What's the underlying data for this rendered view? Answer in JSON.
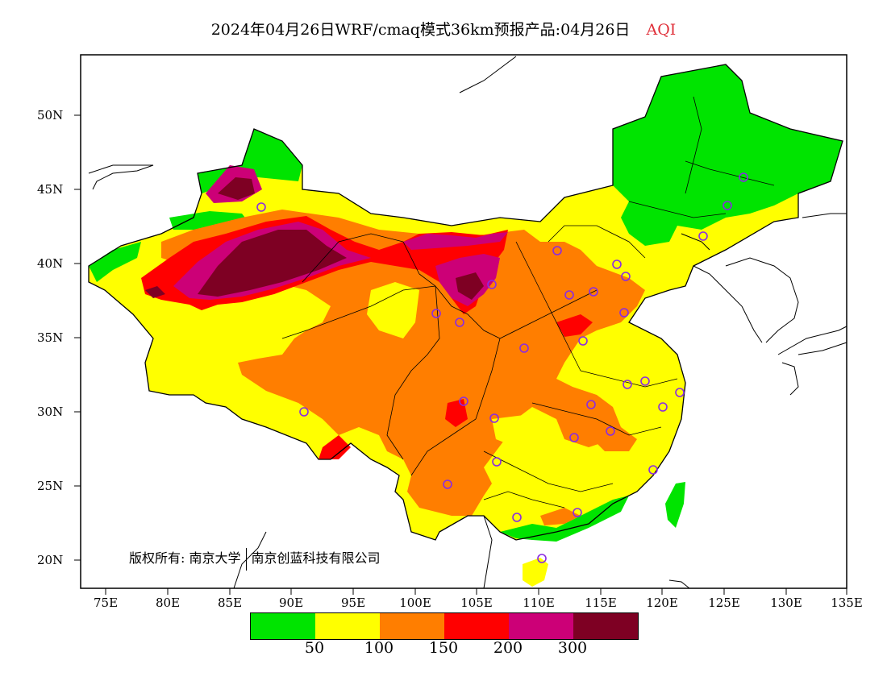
{
  "title": {
    "main": "2024年04月26日WRF/cmaq模式36km预报产品:04月26日",
    "variable": "AQI"
  },
  "copyright": {
    "prefix": "版权所有:",
    "org1": "南京大学",
    "org2": "南京创蓝科技有限公司"
  },
  "axes": {
    "lat_ticks": [
      "50N",
      "45N",
      "40N",
      "35N",
      "30N",
      "25N",
      "20N"
    ],
    "lon_ticks": [
      "75E",
      "80E",
      "85E",
      "90E",
      "95E",
      "100E",
      "105E",
      "110E",
      "115E",
      "120E",
      "125E",
      "130E",
      "135E"
    ]
  },
  "legend": {
    "colors": [
      "#00e400",
      "#ffff00",
      "#ff7e00",
      "#ff0000",
      "#cc0077",
      "#7e0023"
    ],
    "labels": [
      "50",
      "100",
      "150",
      "200",
      "300"
    ]
  },
  "colors": {
    "good": "#00e400",
    "moderate": "#ffff00",
    "usg": "#ff7e00",
    "unhealthy": "#ff0000",
    "very_unhealthy": "#cc0077",
    "hazardous": "#7e0023",
    "station_marker": "#8a2be2"
  }
}
